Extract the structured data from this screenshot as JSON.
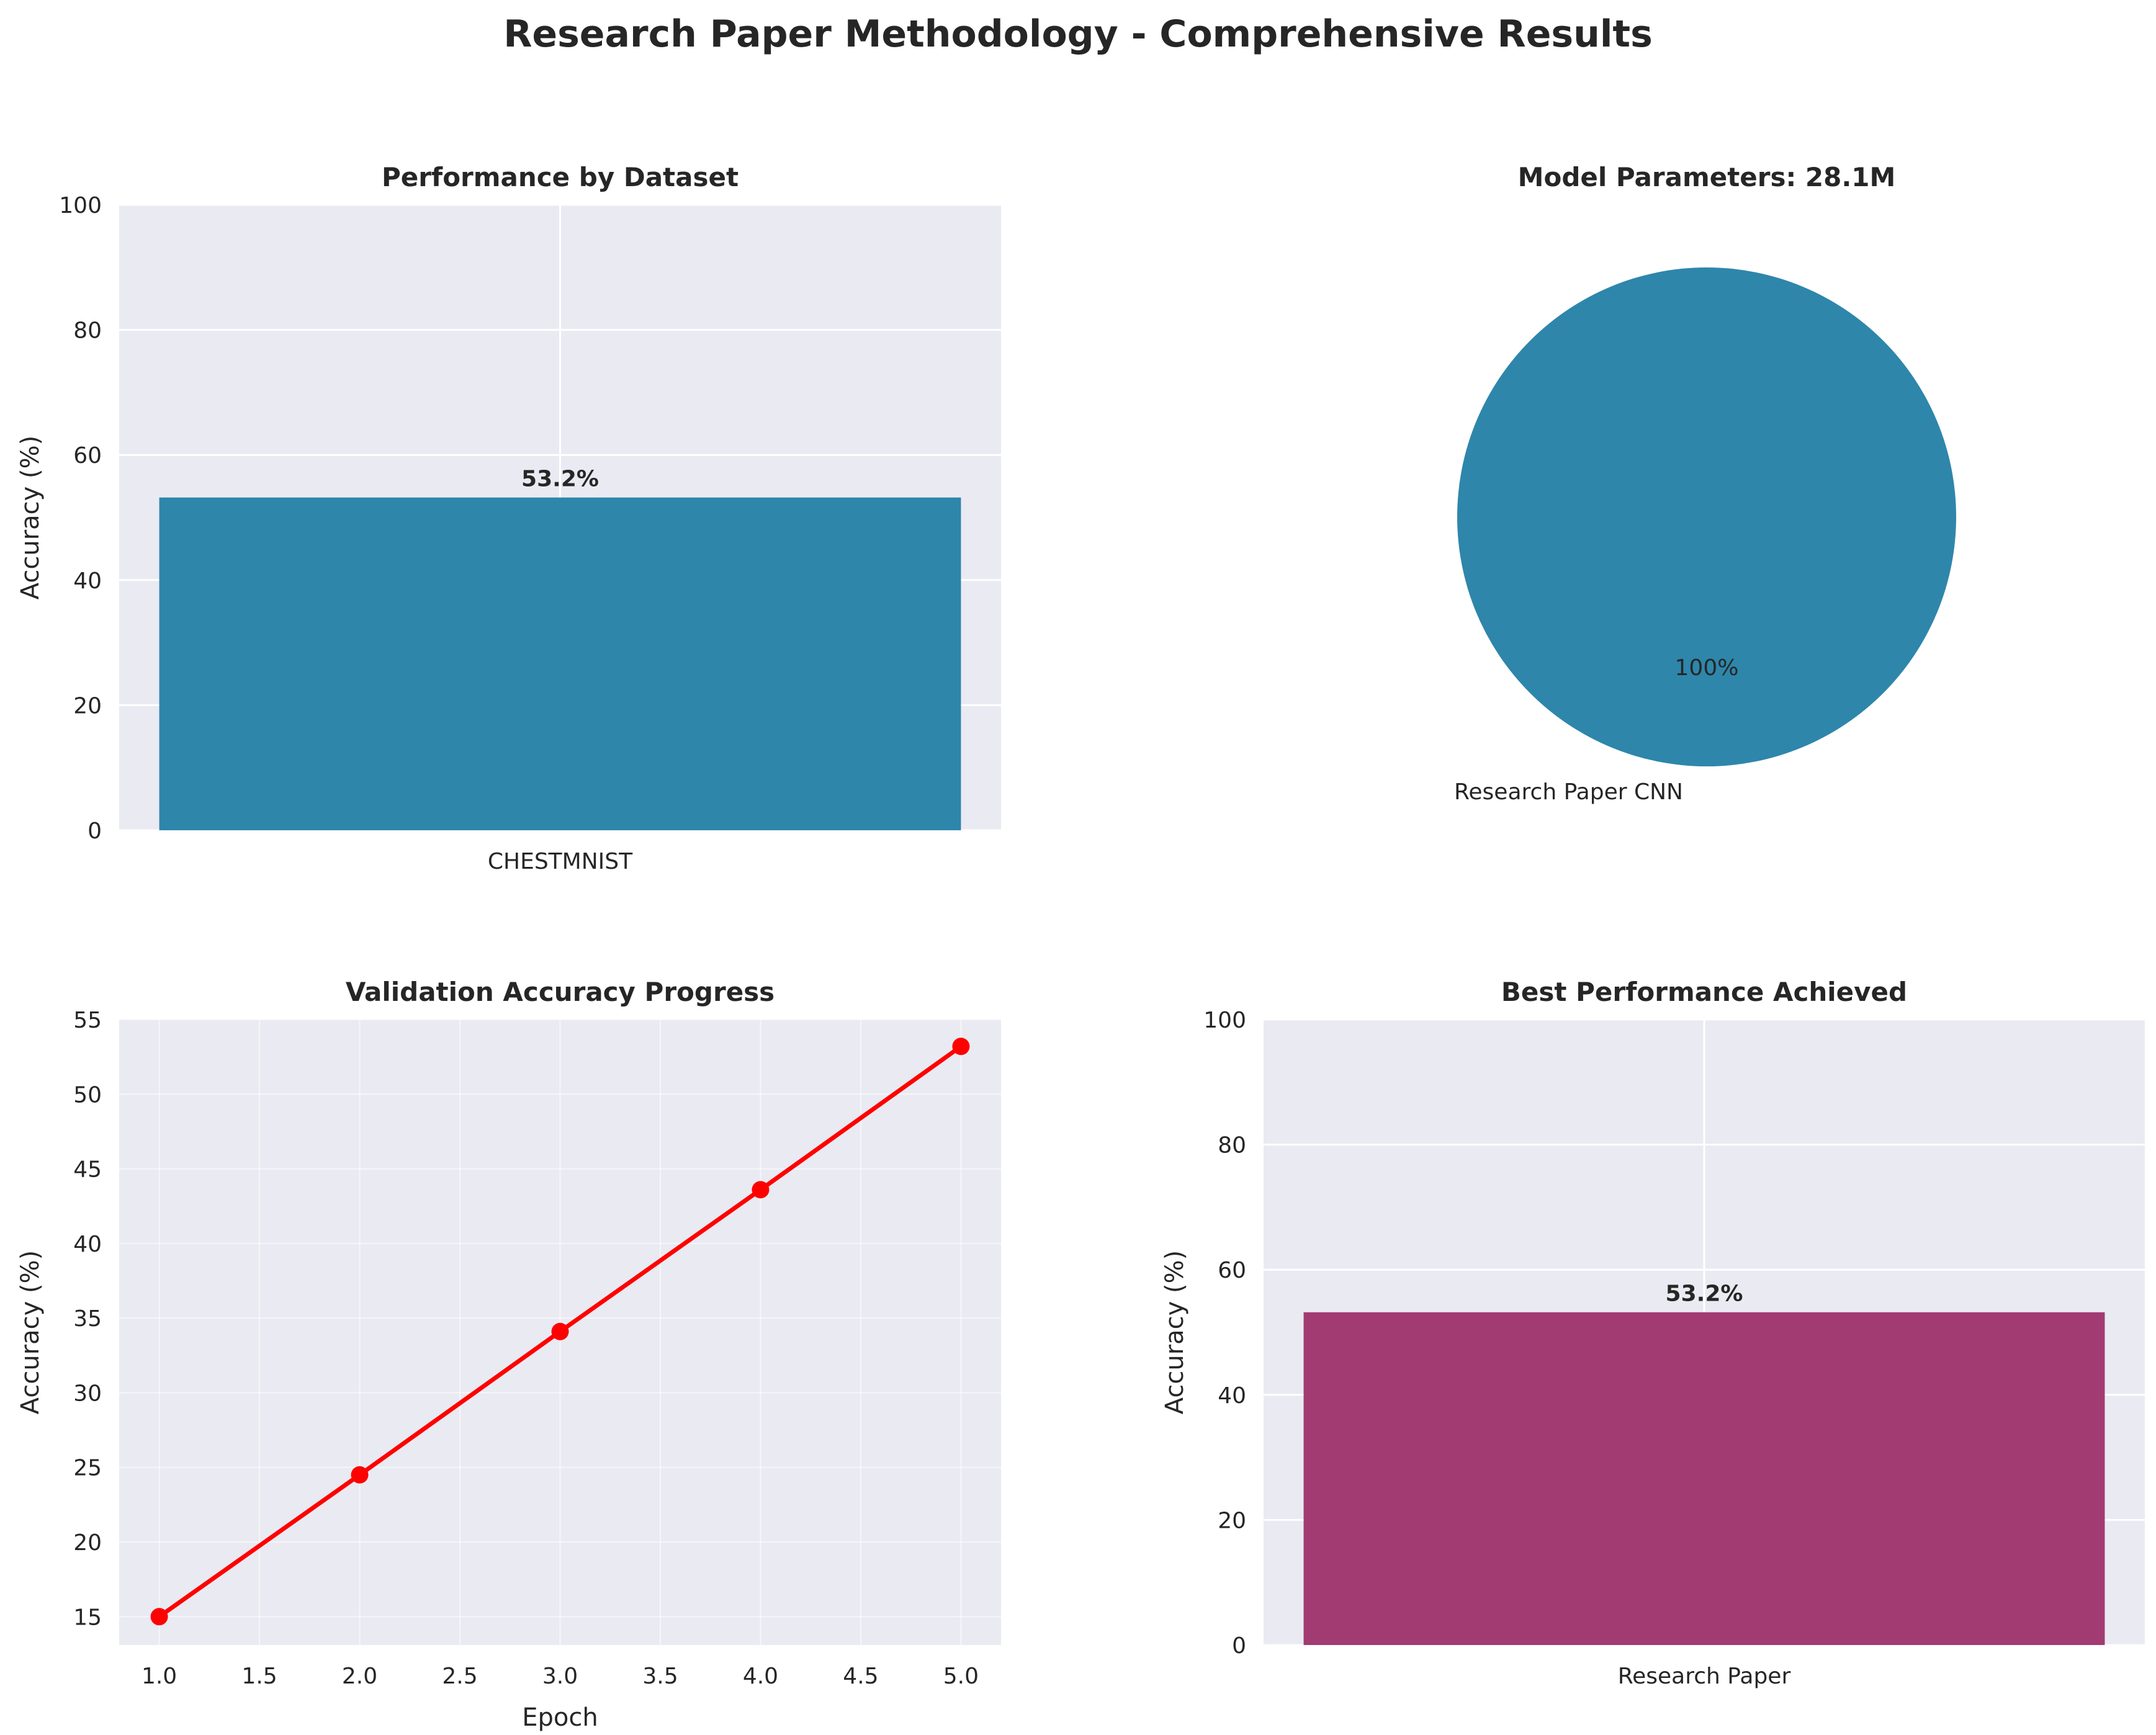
{
  "figure": {
    "title": "Research Paper Methodology - Comprehensive Results",
    "background_color": "#ffffff",
    "axes_background_color": "#eaeaf2",
    "grid_color": "#ffffff"
  },
  "chart_data": [
    {
      "type": "bar",
      "title": "Performance by Dataset",
      "categories": [
        "CHESTMNIST"
      ],
      "values": [
        53.2
      ],
      "value_labels": [
        "53.2%"
      ],
      "xlabel": "",
      "ylabel": "Accuracy (%)",
      "ylim": [
        0,
        100
      ],
      "yticks": [
        0,
        20,
        40,
        60,
        80,
        100
      ],
      "grid": true,
      "color": "#2e86ab"
    },
    {
      "type": "pie",
      "title": "Model Parameters: 28.1M",
      "labels": [
        "Research Paper CNN"
      ],
      "values": [
        100
      ],
      "pct_labels": [
        "100%"
      ],
      "colors": [
        "#2e86ab"
      ]
    },
    {
      "type": "line",
      "title": "Validation Accuracy Progress",
      "x": [
        1,
        2,
        3,
        4,
        5
      ],
      "y": [
        15.0,
        24.5,
        34.1,
        43.6,
        53.2
      ],
      "xlabel": "Epoch",
      "ylabel": "Accuracy (%)",
      "xlim": [
        0.8,
        5.2
      ],
      "ylim": [
        13.1,
        55
      ],
      "xticks": [
        1.0,
        1.5,
        2.0,
        2.5,
        3.0,
        3.5,
        4.0,
        4.5,
        5.0
      ],
      "xtick_labels": [
        "1.0",
        "1.5",
        "2.0",
        "2.5",
        "3.0",
        "3.5",
        "4.0",
        "4.5",
        "5.0"
      ],
      "yticks": [
        15,
        20,
        25,
        30,
        35,
        40,
        45,
        50,
        55
      ],
      "grid": true,
      "color": "#ff0000",
      "marker": "circle"
    },
    {
      "type": "bar",
      "title": "Best Performance Achieved",
      "categories": [
        "Research Paper"
      ],
      "values": [
        53.2
      ],
      "value_labels": [
        "53.2%"
      ],
      "xlabel": "",
      "ylabel": "Accuracy (%)",
      "ylim": [
        0,
        100
      ],
      "yticks": [
        0,
        20,
        40,
        60,
        80,
        100
      ],
      "grid": true,
      "color": "#a23b72"
    }
  ]
}
